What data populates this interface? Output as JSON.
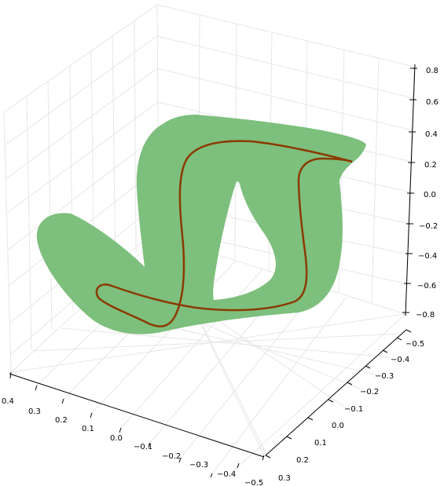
{
  "chart_data": {
    "type": "surface3d",
    "title": "",
    "xlabel": "",
    "ylabel": "",
    "zlabel": "",
    "grid": true,
    "x_axis": {
      "range": [
        -0.5,
        0.4
      ],
      "ticks": [
        "0.4",
        "0.3",
        "0.2",
        "0.1",
        "0.0",
        "−0.1",
        "−0.2",
        "−0.3",
        "−0.4",
        "−0.5"
      ]
    },
    "y_axis": {
      "range": [
        -0.5,
        0.3
      ],
      "ticks": [
        "0.3",
        "0.2",
        "0.1",
        "0.0",
        "−0.1",
        "−0.2",
        "−0.3",
        "−0.4",
        "−0.5"
      ]
    },
    "z_axis": {
      "range": [
        -0.8,
        0.8
      ],
      "ticks": [
        "0.8",
        "0.6",
        "0.4",
        "0.2",
        "0.0",
        "−0.2",
        "−0.4",
        "−0.6",
        "−0.8"
      ]
    },
    "series": [
      {
        "type": "ribbon-surface",
        "color": "#7dbf7d"
      },
      {
        "type": "curve",
        "color": "#8b3a00"
      }
    ]
  }
}
